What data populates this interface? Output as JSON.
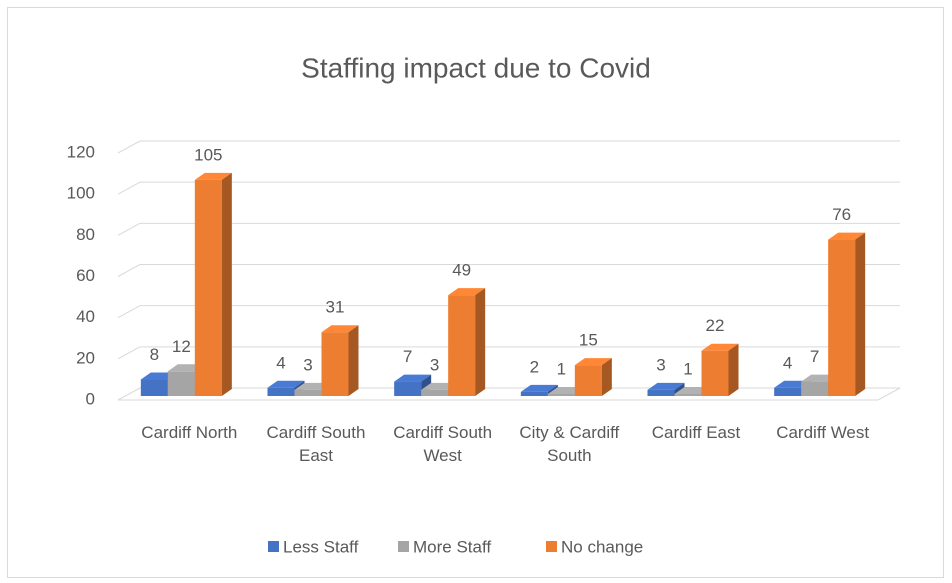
{
  "chart_data": {
    "type": "bar3d",
    "title": "Staffing impact due to Covid",
    "categories": [
      "Cardiff North",
      "Cardiff South East",
      "Cardiff South West",
      "City & Cardiff South",
      "Cardiff East",
      "Cardiff West"
    ],
    "series": [
      {
        "name": "Less Staff",
        "color": "#4472c4",
        "values": [
          8,
          4,
          7,
          2,
          3,
          4
        ]
      },
      {
        "name": "More Staff",
        "color": "#a5a5a5",
        "values": [
          12,
          3,
          3,
          1,
          1,
          7
        ]
      },
      {
        "name": "No change",
        "color": "#ed7d31",
        "values": [
          105,
          31,
          49,
          15,
          22,
          76
        ]
      }
    ],
    "ylim": [
      0,
      120
    ],
    "yticks": [
      0,
      20,
      40,
      60,
      80,
      100,
      120
    ],
    "grid": true,
    "legend": "bottom"
  }
}
